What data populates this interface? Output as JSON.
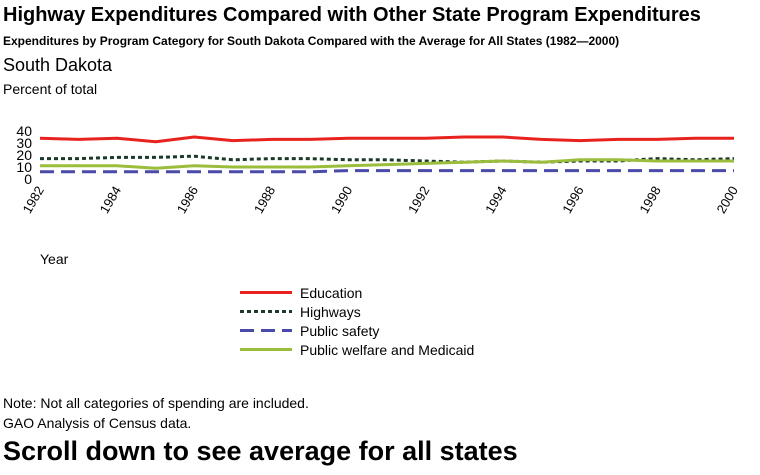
{
  "header": {
    "title": "Highway Expenditures Compared with Other State Program Expenditures",
    "subtitle": "Expenditures by Program Category for South Dakota Compared with the Average for All States (1982—2000)",
    "region": "South Dakota"
  },
  "footer": {
    "note": "Note: Not all categories of spending are included.",
    "source": "GAO Analysis of Census data.",
    "scroll_hint": "Scroll down to see average for all states"
  },
  "chart_data": {
    "type": "line",
    "ylabel": "Percent of total",
    "xlabel": "Year",
    "xlim": [
      1982,
      2000
    ],
    "ylim": [
      0,
      40
    ],
    "x_ticks": [
      1982,
      1984,
      1986,
      1988,
      1990,
      1992,
      1994,
      1996,
      1998,
      2000
    ],
    "y_ticks": [
      0,
      10,
      20,
      30,
      40
    ],
    "grid": false,
    "legend_position": "bottom",
    "x": [
      1982,
      1983,
      1984,
      1985,
      1986,
      1987,
      1988,
      1989,
      1990,
      1991,
      1992,
      1993,
      1994,
      1995,
      1996,
      1997,
      1998,
      1999,
      2000
    ],
    "series": [
      {
        "name": "Education",
        "color": "#e8231f",
        "dash": "solid",
        "values": [
          34,
          33,
          34,
          31,
          35,
          32,
          33,
          33,
          34,
          34,
          34,
          35,
          35,
          33,
          32,
          33,
          33,
          34,
          34
        ]
      },
      {
        "name": "Highways",
        "color": "#1c3a2a",
        "dash": "dotted",
        "values": [
          17,
          17,
          18,
          18,
          19,
          16,
          17,
          17,
          16,
          16,
          15,
          14,
          15,
          14,
          15,
          15,
          17,
          16,
          17
        ]
      },
      {
        "name": "Public safety",
        "color": "#4a4aa8",
        "dash": "dashed",
        "values": [
          6,
          6,
          6,
          6,
          6,
          6,
          6,
          6,
          7,
          7,
          7,
          7,
          7,
          7,
          7,
          7,
          7,
          7,
          7
        ]
      },
      {
        "name": "Public welfare and Medicaid",
        "color": "#9bbd3c",
        "dash": "solid",
        "values": [
          11,
          11,
          11,
          9,
          11,
          10,
          10,
          10,
          11,
          12,
          13,
          14,
          15,
          14,
          16,
          16,
          15,
          15,
          15
        ]
      }
    ]
  }
}
